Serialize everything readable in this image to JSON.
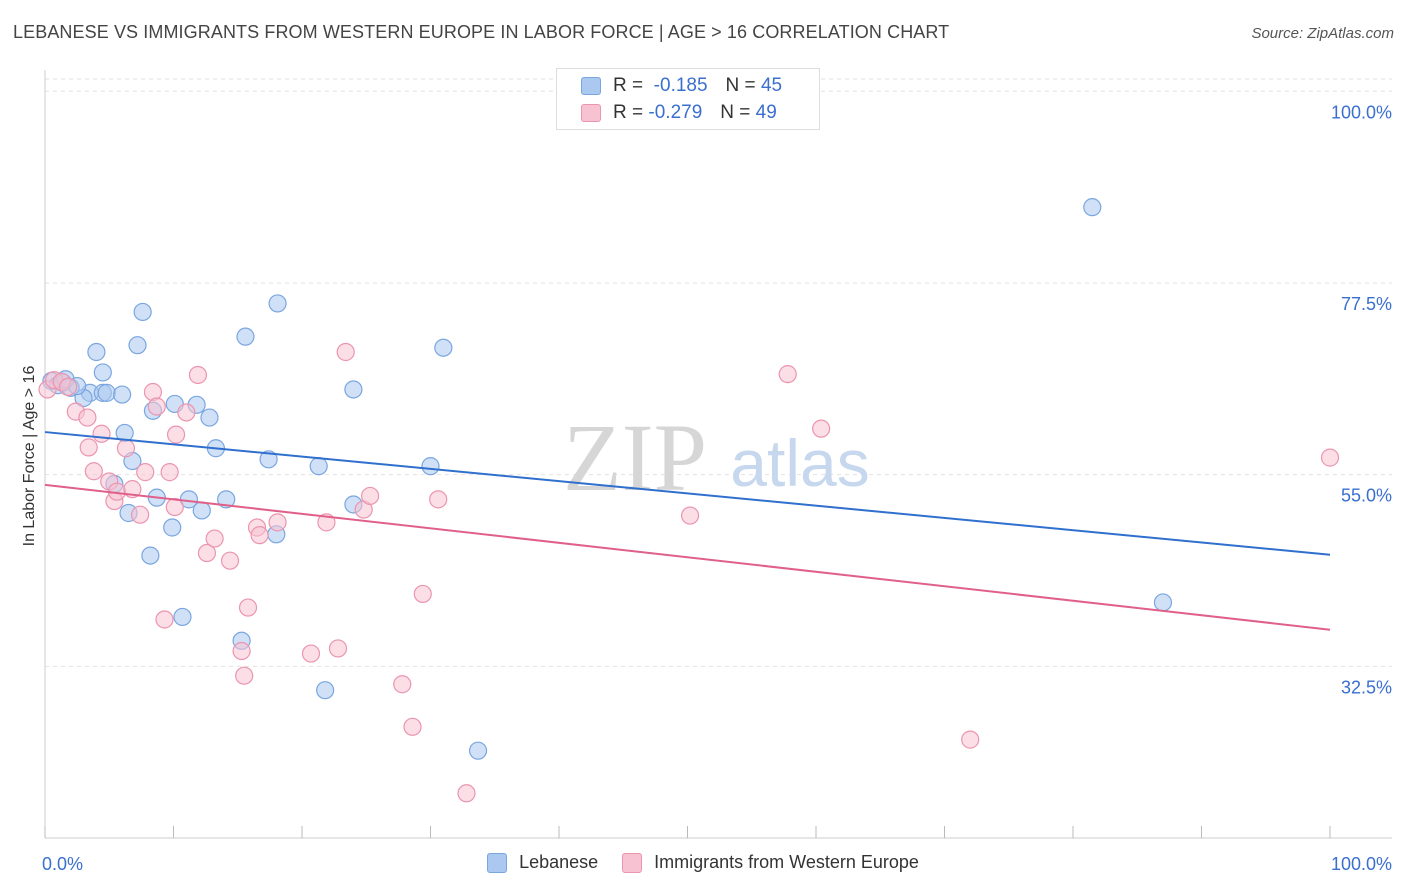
{
  "header": {
    "title": "LEBANESE VS IMMIGRANTS FROM WESTERN EUROPE IN LABOR FORCE | AGE > 16 CORRELATION CHART",
    "source": "Source: ZipAtlas.com"
  },
  "watermark": {
    "zip": "ZIP",
    "atlas": "atlas"
  },
  "legend_top": {
    "rows": [
      {
        "r_label": "R =",
        "r_value": "-0.185",
        "n_label": "N =",
        "n_value": "45",
        "color": "#aac8f0",
        "border": "#7aa6e0"
      },
      {
        "r_label": "R =",
        "r_value": "-0.279",
        "n_label": "N =",
        "n_value": "49",
        "color": "#f7c2d2",
        "border": "#eb95b0"
      }
    ]
  },
  "legend_bottom": {
    "items": [
      {
        "label": "Lebanese",
        "color": "#aac8f0",
        "border": "#7aa6e0"
      },
      {
        "label": "Immigrants from Western Europe",
        "color": "#f7c2d2",
        "border": "#eb95b0"
      }
    ]
  },
  "chart_data": {
    "type": "scatter",
    "title": "LEBANESE VS IMMIGRANTS FROM WESTERN EUROPE IN LABOR FORCE | AGE > 16 CORRELATION CHART",
    "xlabel": "",
    "ylabel": "In Labor Force | Age > 16",
    "xlim": [
      0,
      100
    ],
    "ylim": [
      12.35,
      102.5
    ],
    "y_ticks": [
      32.5,
      55.0,
      77.5,
      100.0
    ],
    "y_tick_labels": [
      "32.5%",
      "55.0%",
      "77.5%",
      "100.0%"
    ],
    "x_tick_labels": [
      "0.0%",
      "100.0%"
    ],
    "grid": true,
    "series": [
      {
        "name": "Lebanese",
        "color": "#aac8f0",
        "stroke": "#7aa6e0",
        "line_color": "#2f6fce",
        "trend": {
          "x": [
            0,
            100
          ],
          "y": [
            60.0,
            45.6
          ]
        },
        "points": [
          [
            0.5,
            66.0
          ],
          [
            1.0,
            65.5
          ],
          [
            1.4,
            65.8
          ],
          [
            2.0,
            65.2
          ],
          [
            3.5,
            64.6
          ],
          [
            4.0,
            69.4
          ],
          [
            4.5,
            64.6
          ],
          [
            4.5,
            67.0
          ],
          [
            4.8,
            64.6
          ],
          [
            5.4,
            53.9
          ],
          [
            6.2,
            59.9
          ],
          [
            6.5,
            50.5
          ],
          [
            6.8,
            56.6
          ],
          [
            7.2,
            70.2
          ],
          [
            7.6,
            74.1
          ],
          [
            8.2,
            45.5
          ],
          [
            8.4,
            62.5
          ],
          [
            8.7,
            52.3
          ],
          [
            9.9,
            48.8
          ],
          [
            10.1,
            63.3
          ],
          [
            10.7,
            38.3
          ],
          [
            11.2,
            52.1
          ],
          [
            11.8,
            63.2
          ],
          [
            12.2,
            50.8
          ],
          [
            12.8,
            61.7
          ],
          [
            13.3,
            58.1
          ],
          [
            14.1,
            52.1
          ],
          [
            15.3,
            35.5
          ],
          [
            15.6,
            71.2
          ],
          [
            17.4,
            56.8
          ],
          [
            18.0,
            48.0
          ],
          [
            18.1,
            75.1
          ],
          [
            21.3,
            56.0
          ],
          [
            21.8,
            29.7
          ],
          [
            24.0,
            51.5
          ],
          [
            24.0,
            65.0
          ],
          [
            30.0,
            56.0
          ],
          [
            31.0,
            69.9
          ],
          [
            33.7,
            22.6
          ],
          [
            81.5,
            86.4
          ],
          [
            87.0,
            40.0
          ],
          [
            1.6,
            66.2
          ],
          [
            3.0,
            64.0
          ],
          [
            2.5,
            65.4
          ],
          [
            6.0,
            64.4
          ]
        ]
      },
      {
        "name": "Immigrants from Western Europe",
        "color": "#f7c2d2",
        "stroke": "#eb95b0",
        "line_color": "#e0608a",
        "trend": {
          "x": [
            0,
            100
          ],
          "y": [
            53.8,
            36.8
          ]
        },
        "points": [
          [
            0.2,
            65.0
          ],
          [
            0.7,
            66.1
          ],
          [
            1.3,
            65.9
          ],
          [
            1.8,
            65.3
          ],
          [
            2.4,
            62.4
          ],
          [
            3.3,
            61.7
          ],
          [
            3.4,
            58.2
          ],
          [
            3.8,
            55.4
          ],
          [
            4.4,
            59.8
          ],
          [
            5.0,
            54.2
          ],
          [
            5.4,
            51.9
          ],
          [
            5.6,
            53.0
          ],
          [
            6.3,
            58.1
          ],
          [
            6.8,
            53.3
          ],
          [
            7.4,
            50.3
          ],
          [
            7.8,
            55.3
          ],
          [
            8.4,
            64.7
          ],
          [
            8.7,
            63.0
          ],
          [
            9.3,
            38.0
          ],
          [
            9.7,
            55.3
          ],
          [
            10.1,
            51.2
          ],
          [
            10.2,
            59.7
          ],
          [
            11.0,
            62.3
          ],
          [
            11.9,
            66.7
          ],
          [
            12.6,
            45.8
          ],
          [
            13.2,
            47.5
          ],
          [
            14.4,
            44.9
          ],
          [
            15.3,
            34.3
          ],
          [
            15.5,
            31.4
          ],
          [
            15.8,
            39.4
          ],
          [
            16.5,
            48.8
          ],
          [
            16.7,
            47.9
          ],
          [
            18.1,
            49.4
          ],
          [
            20.7,
            34.0
          ],
          [
            21.9,
            49.4
          ],
          [
            22.8,
            34.6
          ],
          [
            23.4,
            69.4
          ],
          [
            24.8,
            50.9
          ],
          [
            25.3,
            52.5
          ],
          [
            27.8,
            30.4
          ],
          [
            28.6,
            25.4
          ],
          [
            29.4,
            41.0
          ],
          [
            30.6,
            52.1
          ],
          [
            32.8,
            17.6
          ],
          [
            50.2,
            50.2
          ],
          [
            57.8,
            66.8
          ],
          [
            60.4,
            60.4
          ],
          [
            72.0,
            23.9
          ],
          [
            100.0,
            57.0
          ]
        ]
      }
    ]
  }
}
